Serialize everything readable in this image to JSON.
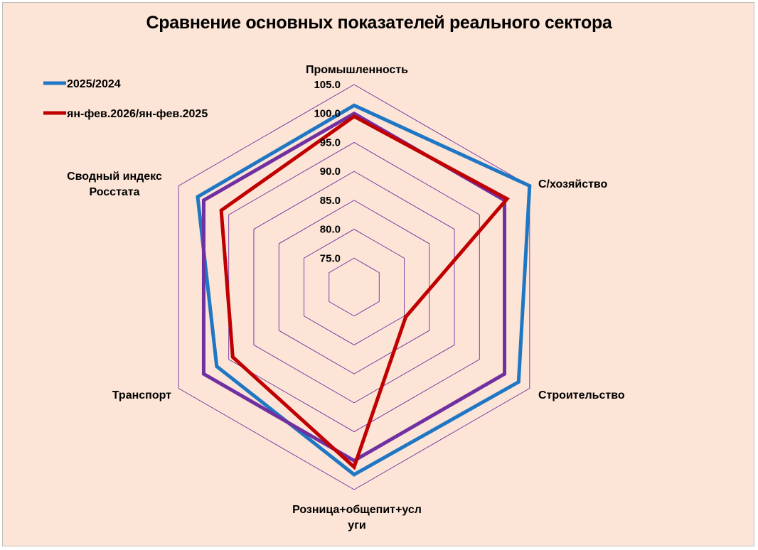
{
  "chart_data": {
    "type": "radar",
    "title": "Сравнение основных показателей реального сектора",
    "categories": [
      "Промышленность",
      "С/хозяйство",
      "Строительство",
      "Розница+общепит+усл уги",
      "Транспорт",
      "Сводный индекс Росстата"
    ],
    "radial_ticks": [
      "75.0",
      "80.0",
      "85.0",
      "90.0",
      "95.0",
      "100.0",
      "105.0"
    ],
    "rlim": [
      70,
      105
    ],
    "legend_position": "top-left",
    "series": [
      {
        "name": "2025/2024",
        "color": "#1f77c4",
        "values": [
          101.4,
          105.0,
          102.8,
          102.4,
          97.4,
          101.2
        ]
      },
      {
        "name": "",
        "color": "#7030a0",
        "values": [
          100.0,
          100.0,
          100.0,
          100.0,
          100.0,
          100.0
        ]
      },
      {
        "name": "ян-фев.2026/ян-фев.2025",
        "color": "#c00000",
        "values": [
          99.5,
          100.5,
          80.3,
          101.1,
          94.2,
          96.5
        ]
      }
    ]
  }
}
